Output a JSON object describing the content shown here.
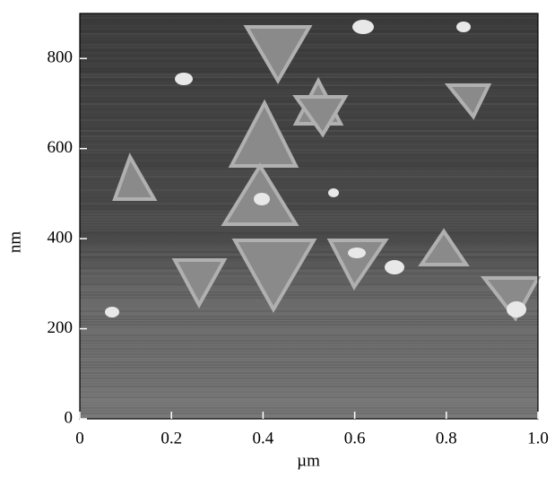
{
  "chart_data": {
    "type": "image",
    "x_label": "µm",
    "y_label": "nm",
    "xlim": [
      0,
      1
    ],
    "ylim": [
      0,
      900
    ],
    "xticks": [
      0,
      0.2,
      0.4,
      0.6,
      0.8,
      {
        "value": 1,
        "label": "1.0"
      }
    ],
    "yticks": [
      0,
      200,
      400,
      600,
      800
    ]
  }
}
